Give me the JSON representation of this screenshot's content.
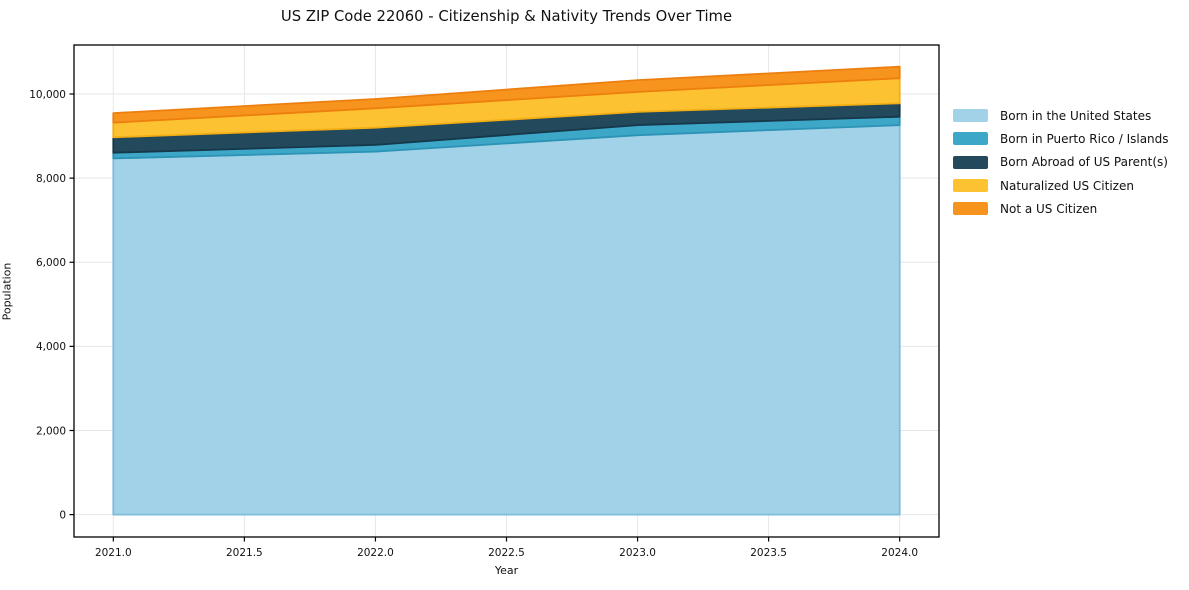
{
  "chart_data": {
    "type": "area",
    "stacked": true,
    "title": "US ZIP Code 22060 - Citizenship & Nativity Trends Over Time",
    "xlabel": "Year",
    "ylabel": "Population",
    "x": [
      2021,
      2022,
      2023,
      2024
    ],
    "series": [
      {
        "name": "Born in the United States",
        "values": [
          8470,
          8630,
          9020,
          9260
        ],
        "color": "#a1d2e8",
        "edge": "#7fbcdb"
      },
      {
        "name": "Born in Puerto Rico / Islands",
        "values": [
          135,
          160,
          240,
          200
        ],
        "color": "#3da7c8",
        "edge": "#2c93b5"
      },
      {
        "name": "Born Abroad of US Parent(s)",
        "values": [
          365,
          410,
          315,
          320
        ],
        "color": "#23495c",
        "edge": "#16384a"
      },
      {
        "name": "Naturalized US Citizen",
        "values": [
          350,
          460,
          475,
          595
        ],
        "color": "#fdc231",
        "edge": "#f2ae14"
      },
      {
        "name": "Not a US Citizen",
        "values": [
          225,
          220,
          280,
          275
        ],
        "color": "#f6941e",
        "edge": "#ed7f0f"
      }
    ],
    "xticks": {
      "values": [
        2021,
        2021.5,
        2022,
        2022.5,
        2023,
        2023.5,
        2024
      ],
      "labels": [
        "2021.0",
        "2021.5",
        "2022.0",
        "2022.5",
        "2023.0",
        "2023.5",
        "2024.0"
      ]
    },
    "yticks": {
      "values": [
        0,
        2000,
        4000,
        6000,
        8000,
        10000
      ],
      "labels": [
        "0",
        "2,000",
        "4,000",
        "6,000",
        "8,000",
        "10,000"
      ]
    },
    "xlim": [
      2020.85,
      2024.15
    ],
    "ylim": [
      -532,
      11165
    ],
    "grid": true,
    "grid_color": "#e7e7e7",
    "spine_color": "#000000",
    "legend_position": "right-outside"
  }
}
